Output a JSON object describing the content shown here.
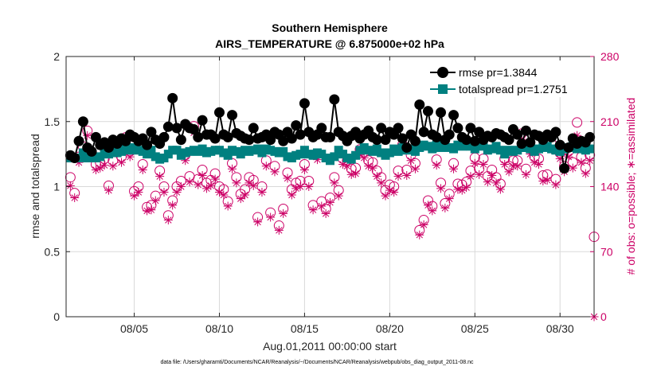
{
  "colors": {
    "rmse": "#000000",
    "totalspread": "#008080",
    "obs": "#cc0066",
    "grid": "#d9d9d9",
    "axis": "#262626"
  },
  "chart_data": {
    "type": "line",
    "title": "Southern Hemisphere",
    "subtitle": "AIRS_TEMPERATURE @ 6.875000e+02 hPa",
    "xlabel": "Aug.01,2011 00:00:00 start",
    "ylabel_left": "rmse and totalspread",
    "ylabel_right": "# of obs: o=possible; ∗=assimilated",
    "footnote": "data file: /Users/gharamti/Documents/NCAR/Reanalysis/~/Documents/NCAR/Reanalysis/webpub/obs_diag_output_2011-08.nc",
    "xlim": [
      1,
      32
    ],
    "x_ticks": [
      5,
      10,
      15,
      20,
      25,
      30
    ],
    "x_tick_labels": [
      "08/05",
      "08/10",
      "08/15",
      "08/20",
      "08/25",
      "08/30"
    ],
    "ylim_left": [
      0,
      2
    ],
    "y_ticks_left": [
      0,
      0.5,
      1,
      1.5,
      2
    ],
    "y_tick_labels_left": [
      "0",
      "0.5",
      "1",
      "1.5",
      "2"
    ],
    "ylim_right": [
      0,
      280
    ],
    "y_ticks_right": [
      0,
      70,
      140,
      210,
      280
    ],
    "y_tick_labels_right": [
      "0",
      "70",
      "140",
      "210",
      "280"
    ],
    "legend_position": "top-right",
    "grid": true,
    "series": [
      {
        "name": "rmse pr=1.3844",
        "axis": "left",
        "marker": "filled-circle",
        "x": [
          1.25,
          1.5,
          1.75,
          2,
          2.25,
          2.5,
          2.75,
          3,
          3.25,
          3.5,
          3.75,
          4,
          4.25,
          4.5,
          4.75,
          5,
          5.25,
          5.5,
          5.75,
          6,
          6.25,
          6.5,
          6.75,
          7,
          7.25,
          7.5,
          7.75,
          8,
          8.25,
          8.5,
          8.75,
          9,
          9.25,
          9.5,
          9.75,
          10,
          10.25,
          10.5,
          10.75,
          11,
          11.25,
          11.5,
          11.75,
          12,
          12.25,
          12.5,
          12.75,
          13,
          13.25,
          13.5,
          13.75,
          14,
          14.25,
          14.5,
          14.75,
          15,
          15.25,
          15.5,
          15.75,
          16,
          16.25,
          16.5,
          16.75,
          17,
          17.25,
          17.5,
          17.75,
          18,
          18.25,
          18.5,
          18.75,
          19,
          19.25,
          19.5,
          19.75,
          20,
          20.25,
          20.5,
          20.75,
          21,
          21.25,
          21.5,
          21.75,
          22,
          22.25,
          22.5,
          22.75,
          23,
          23.25,
          23.5,
          23.75,
          24,
          24.25,
          24.5,
          24.75,
          25,
          25.25,
          25.5,
          25.75,
          26,
          26.25,
          26.5,
          26.75,
          27,
          27.25,
          27.5,
          27.75,
          28,
          28.25,
          28.5,
          28.75,
          29,
          29.25,
          29.5,
          29.75,
          30,
          30.25,
          30.5,
          30.75,
          31,
          31.25,
          31.5,
          31.75
        ],
        "y": [
          1.24,
          1.22,
          1.35,
          1.5,
          1.3,
          1.27,
          1.38,
          1.32,
          1.34,
          1.3,
          1.36,
          1.33,
          1.37,
          1.35,
          1.4,
          1.38,
          1.35,
          1.37,
          1.32,
          1.42,
          1.36,
          1.33,
          1.38,
          1.46,
          1.68,
          1.45,
          1.36,
          1.48,
          1.45,
          1.44,
          1.38,
          1.51,
          1.4,
          1.4,
          1.37,
          1.57,
          1.4,
          1.38,
          1.55,
          1.41,
          1.39,
          1.37,
          1.36,
          1.45,
          1.37,
          1.38,
          1.4,
          1.36,
          1.42,
          1.4,
          1.35,
          1.42,
          1.37,
          1.47,
          1.4,
          1.64,
          1.42,
          1.38,
          1.4,
          1.45,
          1.38,
          1.38,
          1.67,
          1.42,
          1.39,
          1.35,
          1.39,
          1.42,
          1.37,
          1.4,
          1.43,
          1.38,
          1.36,
          1.45,
          1.36,
          1.42,
          1.4,
          1.45,
          1.37,
          1.3,
          1.4,
          1.35,
          1.63,
          1.42,
          1.58,
          1.4,
          1.38,
          1.57,
          1.36,
          1.4,
          1.55,
          1.45,
          1.38,
          1.36,
          1.45,
          1.35,
          1.42,
          1.36,
          1.39,
          1.38,
          1.41,
          1.4,
          1.38,
          1.36,
          1.44,
          1.4,
          1.33,
          1.43,
          1.34,
          1.4,
          1.39,
          1.36,
          1.4,
          1.38,
          1.42,
          1.32,
          1.14,
          1.3,
          1.37,
          1.33,
          1.35,
          1.34,
          1.38
        ]
      },
      {
        "name": "totalspread pr=1.2751",
        "axis": "left",
        "marker": "filled-square",
        "x": [
          1.25,
          1.5,
          1.75,
          2,
          2.25,
          2.5,
          2.75,
          3,
          3.25,
          3.5,
          3.75,
          4,
          4.25,
          4.5,
          4.75,
          5,
          5.25,
          5.5,
          5.75,
          6,
          6.25,
          6.5,
          6.75,
          7,
          7.25,
          7.5,
          7.75,
          8,
          8.25,
          8.5,
          8.75,
          9,
          9.25,
          9.5,
          9.75,
          10,
          10.25,
          10.5,
          10.75,
          11,
          11.25,
          11.5,
          11.75,
          12,
          12.25,
          12.5,
          12.75,
          13,
          13.25,
          13.5,
          13.75,
          14,
          14.25,
          14.5,
          14.75,
          15,
          15.25,
          15.5,
          15.75,
          16,
          16.25,
          16.5,
          16.75,
          17,
          17.25,
          17.5,
          17.75,
          18,
          18.25,
          18.5,
          18.75,
          19,
          19.25,
          19.5,
          19.75,
          20,
          20.25,
          20.5,
          20.75,
          21,
          21.25,
          21.5,
          21.75,
          22,
          22.25,
          22.5,
          22.75,
          23,
          23.25,
          23.5,
          23.75,
          24,
          24.25,
          24.5,
          24.75,
          25,
          25.25,
          25.5,
          25.75,
          26,
          26.25,
          26.5,
          26.75,
          27,
          27.25,
          27.5,
          27.75,
          28,
          28.25,
          28.5,
          28.75,
          29,
          29.25,
          29.5,
          29.75,
          30,
          30.25,
          30.5,
          30.75,
          31,
          31.25,
          31.5,
          31.75
        ],
        "y": [
          1.22,
          1.22,
          1.22,
          1.26,
          1.22,
          1.24,
          1.22,
          1.23,
          1.28,
          1.25,
          1.27,
          1.26,
          1.27,
          1.3,
          1.28,
          1.3,
          1.28,
          1.27,
          1.25,
          1.28,
          1.23,
          1.21,
          1.22,
          1.25,
          1.28,
          1.28,
          1.24,
          1.26,
          1.27,
          1.28,
          1.27,
          1.29,
          1.26,
          1.27,
          1.28,
          1.28,
          1.26,
          1.24,
          1.28,
          1.27,
          1.25,
          1.28,
          1.27,
          1.28,
          1.29,
          1.26,
          1.29,
          1.28,
          1.27,
          1.26,
          1.27,
          1.23,
          1.22,
          1.24,
          1.25,
          1.28,
          1.25,
          1.24,
          1.26,
          1.25,
          1.22,
          1.2,
          1.23,
          1.28,
          1.25,
          1.22,
          1.21,
          1.24,
          1.28,
          1.3,
          1.28,
          1.27,
          1.29,
          1.26,
          1.24,
          1.26,
          1.29,
          1.27,
          1.3,
          1.28,
          1.29,
          1.27,
          1.3,
          1.32,
          1.31,
          1.29,
          1.32,
          1.3,
          1.31,
          1.3,
          1.29,
          1.32,
          1.31,
          1.32,
          1.31,
          1.29,
          1.32,
          1.31,
          1.28,
          1.29,
          1.31,
          1.28,
          1.25,
          1.28,
          1.27,
          1.28,
          1.3,
          1.3,
          1.29,
          1.27,
          1.29,
          1.3,
          1.31,
          1.29,
          1.28,
          1.27,
          1.29,
          1.3,
          1.31,
          1.29,
          1.3,
          1.28,
          1.29
        ]
      },
      {
        "name": "possible",
        "axis": "right",
        "marker": "open-circle",
        "x": [
          1.25,
          1.5,
          1.75,
          2,
          2.25,
          2.5,
          2.75,
          3,
          3.25,
          3.5,
          3.75,
          4,
          4.25,
          4.5,
          4.75,
          5,
          5.25,
          5.5,
          5.75,
          6,
          6.25,
          6.5,
          6.75,
          7,
          7.25,
          7.5,
          7.75,
          8,
          8.25,
          8.5,
          8.75,
          9,
          9.25,
          9.5,
          9.75,
          10,
          10.25,
          10.5,
          10.75,
          11,
          11.25,
          11.5,
          11.75,
          12,
          12.25,
          12.5,
          12.75,
          13,
          13.25,
          13.5,
          13.75,
          14,
          14.25,
          14.5,
          14.75,
          15,
          15.25,
          15.5,
          15.75,
          16,
          16.25,
          16.5,
          16.75,
          17,
          17.25,
          17.5,
          17.75,
          18,
          18.25,
          18.5,
          18.75,
          19,
          19.25,
          19.5,
          19.75,
          20,
          20.25,
          20.5,
          20.75,
          21,
          21.25,
          21.5,
          21.75,
          22,
          22.25,
          22.5,
          22.75,
          23,
          23.25,
          23.5,
          23.75,
          24,
          24.25,
          24.5,
          24.75,
          25,
          25.25,
          25.5,
          25.75,
          26,
          26.25,
          26.5,
          26.75,
          27,
          27.25,
          27.5,
          27.75,
          28,
          28.25,
          28.5,
          28.75,
          29,
          29.25,
          29.5,
          29.75,
          30,
          30.25,
          30.5,
          30.75,
          31,
          31.25,
          31.5,
          31.75,
          32
        ],
        "y": [
          150,
          133,
          172,
          183,
          200,
          177,
          164,
          166,
          170,
          141,
          168,
          182,
          172,
          193,
          178,
          135,
          140,
          164,
          118,
          120,
          130,
          157,
          140,
          109,
          125,
          140,
          146,
          174,
          151,
          205,
          148,
          158,
          144,
          147,
          154,
          140,
          137,
          124,
          165,
          150,
          132,
          137,
          150,
          147,
          107,
          140,
          168,
          112,
          162,
          98,
          116,
          155,
          137,
          144,
          146,
          164,
          146,
          120,
          175,
          124,
          116,
          128,
          150,
          136,
          170,
          168,
          159,
          160,
          180,
          177,
          168,
          166,
          157,
          150,
          136,
          142,
          140,
          157,
          185,
          158,
          174,
          165,
          93,
          104,
          125,
          119,
          169,
          144,
          122,
          132,
          165,
          143,
          142,
          145,
          157,
          171,
          159,
          170,
          151,
          158,
          150,
          143,
          170,
          162,
          168,
          168,
          197,
          159,
          181,
          172,
          170,
          152,
          153,
          186,
          148,
          176,
          162,
          178,
          166,
          209,
          172,
          160,
          174,
          86
        ]
      },
      {
        "name": "assimilated",
        "axis": "right",
        "marker": "asterisk",
        "x": [
          1.25,
          1.5,
          1.75,
          2,
          2.25,
          2.5,
          2.75,
          3,
          3.25,
          3.5,
          3.75,
          4,
          4.25,
          4.5,
          4.75,
          5,
          5.25,
          5.5,
          5.75,
          6,
          6.25,
          6.5,
          6.75,
          7,
          7.25,
          7.5,
          7.75,
          8,
          8.25,
          8.5,
          8.75,
          9,
          9.25,
          9.5,
          9.75,
          10,
          10.25,
          10.5,
          10.75,
          11,
          11.25,
          11.5,
          11.75,
          12,
          12.25,
          12.5,
          12.75,
          13,
          13.25,
          13.5,
          13.75,
          14,
          14.25,
          14.5,
          14.75,
          15,
          15.25,
          15.5,
          15.75,
          16,
          16.25,
          16.5,
          16.75,
          17,
          17.25,
          17.5,
          17.75,
          18,
          18.25,
          18.5,
          18.75,
          19,
          19.25,
          19.5,
          19.75,
          20,
          20.25,
          20.5,
          20.75,
          21,
          21.25,
          21.5,
          21.75,
          22,
          22.25,
          22.5,
          22.75,
          23,
          23.25,
          23.5,
          23.75,
          24,
          24.25,
          24.5,
          24.75,
          25,
          25.25,
          25.5,
          25.75,
          26,
          26.25,
          26.5,
          26.75,
          27,
          27.25,
          27.5,
          27.75,
          28,
          28.25,
          28.5,
          28.75,
          29,
          29.25,
          29.5,
          29.75,
          30,
          30.25,
          30.5,
          30.75,
          31,
          31.25,
          31.5,
          31.75,
          32
        ],
        "y": [
          141,
          128,
          166,
          177,
          195,
          171,
          158,
          160,
          163,
          136,
          162,
          176,
          166,
          187,
          172,
          130,
          134,
          158,
          114,
          115,
          125,
          151,
          134,
          104,
          120,
          134,
          140,
          168,
          145,
          198,
          142,
          152,
          138,
          141,
          148,
          134,
          131,
          119,
          159,
          144,
          127,
          131,
          144,
          141,
          102,
          134,
          162,
          107,
          156,
          93,
          111,
          149,
          131,
          138,
          140,
          158,
          140,
          115,
          169,
          119,
          111,
          123,
          144,
          130,
          164,
          162,
          153,
          154,
          174,
          171,
          162,
          160,
          151,
          144,
          130,
          136,
          134,
          151,
          179,
          152,
          168,
          159,
          88,
          99,
          120,
          114,
          163,
          138,
          117,
          127,
          159,
          137,
          136,
          139,
          151,
          165,
          153,
          164,
          145,
          152,
          144,
          137,
          164,
          156,
          162,
          162,
          191,
          153,
          175,
          166,
          164,
          146,
          147,
          180,
          142,
          170,
          156,
          172,
          160,
          195,
          166,
          154,
          168,
          0
        ]
      }
    ]
  }
}
